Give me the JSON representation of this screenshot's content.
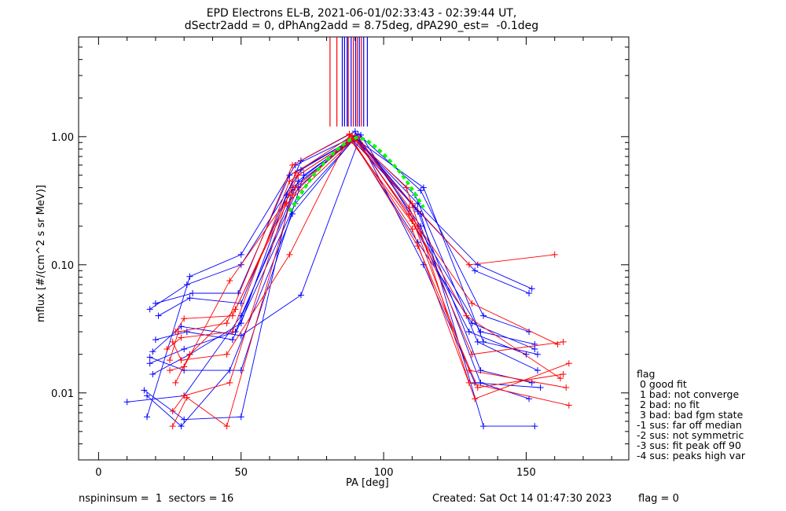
{
  "title_line1": "EPD Electrons EL-B, 2021-06-01/02:33:43 - 02:39:44 UT,",
  "title_line2": "dSectr2add = 0, dPhAng2add = 8.75deg, dPA290_est=  -0.1deg",
  "footer": {
    "left": "nspininsum =  1  sectors = 16",
    "created": "Created: Sat Oct 14 01:47:30 2023",
    "flag": "flag = 0"
  },
  "legend": {
    "title": "flag",
    "items": [
      " 0 good fit",
      " 1 bad: not converge",
      " 2 bad: no fit",
      " 3 bad: bad fgm state",
      "-1 sus: far off median",
      "-2 sus: not symmetric",
      "-3 sus: fit peak off 90",
      "-4 sus: peaks high var"
    ]
  },
  "colors": {
    "blue": "#0000ff",
    "red": "#ff0000",
    "green": "#00ff00",
    "axis": "#000000"
  },
  "chart_data": {
    "type": "line",
    "xlabel": "PA [deg]",
    "ylabel": "mflux [#/(cm^2 s sr MeV)]",
    "xlim": [
      -7,
      186
    ],
    "ylim": [
      0.003,
      6.0
    ],
    "ylog": true,
    "xticks": [
      0,
      50,
      100,
      150
    ],
    "xticklabels": [
      "0",
      "50",
      "100",
      "150"
    ],
    "yticks": [
      0.01,
      0.1,
      1.0
    ],
    "yticklabels": [
      "0.01",
      "0.10",
      "1.00"
    ],
    "vertical_lines": [
      {
        "color": "red",
        "x": 81.2,
        "ymin": 1.2
      },
      {
        "color": "red",
        "x": 83.6,
        "ymin": 1.2
      },
      {
        "color": "blue",
        "x": 85.5,
        "ymin": 1.2
      },
      {
        "color": "blue",
        "x": 86.3,
        "ymin": 1.2
      },
      {
        "color": "blue",
        "x": 87.2,
        "ymin": 1.2
      },
      {
        "color": "red",
        "x": 87.6,
        "ymin": 1.2
      },
      {
        "color": "blue",
        "x": 88.6,
        "ymin": 1.2
      },
      {
        "color": "red",
        "x": 89.4,
        "ymin": 1.2
      },
      {
        "color": "blue",
        "x": 90.2,
        "ymin": 1.2
      },
      {
        "color": "red",
        "x": 90.8,
        "ymin": 1.2
      },
      {
        "color": "blue",
        "x": 91.5,
        "ymin": 1.2
      },
      {
        "color": "red",
        "x": 92.2,
        "ymin": 1.2
      },
      {
        "color": "blue",
        "x": 93.0,
        "ymin": 1.2
      },
      {
        "color": "blue",
        "x": 94.3,
        "ymin": 1.2
      }
    ],
    "series": [
      {
        "color": "blue",
        "x": [
          10,
          30,
          50,
          70,
          90,
          110,
          130,
          150
        ],
        "y": [
          0.0085,
          0.0095,
          0.04,
          0.4,
          1.0,
          0.22,
          0.03,
          0.02
        ]
      },
      {
        "color": "blue",
        "x": [
          17,
          32,
          50,
          69,
          90,
          113,
          135,
          153
        ],
        "y": [
          0.0065,
          0.081,
          0.12,
          0.6,
          1.01,
          0.25,
          0.0055,
          0.0055
        ]
      },
      {
        "color": "blue",
        "x": [
          18,
          31,
          50,
          71,
          90,
          112,
          133,
          152
        ],
        "y": [
          0.045,
          0.07,
          0.1,
          0.55,
          0.98,
          0.3,
          0.1,
          0.065
        ]
      },
      {
        "color": "blue",
        "x": [
          20,
          33,
          49,
          67,
          89,
          111,
          132,
          151
        ],
        "y": [
          0.05,
          0.06,
          0.06,
          0.5,
          0.95,
          0.28,
          0.09,
          0.06
        ]
      },
      {
        "color": "blue",
        "x": [
          19,
          29,
          50,
          71,
          92,
          112,
          134,
          153
        ],
        "y": [
          0.021,
          0.033,
          0.028,
          0.058,
          1.03,
          0.2,
          0.03,
          0.024
        ]
      },
      {
        "color": "blue",
        "x": [
          16,
          30,
          50,
          68,
          90,
          111,
          133,
          154
        ],
        "y": [
          0.0105,
          0.0062,
          0.0065,
          0.4,
          0.96,
          0.35,
          0.025,
          0.015
        ]
      },
      {
        "color": "blue",
        "x": [
          18,
          30,
          48,
          70,
          90,
          112,
          134,
          152
        ],
        "y": [
          0.017,
          0.022,
          0.03,
          0.45,
          0.99,
          0.26,
          0.015,
          0.012
        ]
      },
      {
        "color": "blue",
        "x": [
          19,
          32,
          50,
          66,
          91,
          113,
          135,
          151
        ],
        "y": [
          0.014,
          0.02,
          0.035,
          0.35,
          1.05,
          0.38,
          0.04,
          0.03
        ]
      },
      {
        "color": "blue",
        "x": [
          20,
          31,
          47,
          69,
          90,
          114,
          135,
          154
        ],
        "y": [
          0.026,
          0.03,
          0.026,
          0.3,
          0.97,
          0.4,
          0.025,
          0.02
        ]
      },
      {
        "color": "blue",
        "x": [
          17,
          29,
          46,
          68,
          89,
          112,
          131,
          153
        ],
        "y": [
          0.0095,
          0.0055,
          0.015,
          0.25,
          0.93,
          0.15,
          0.035,
          0.022
        ]
      },
      {
        "color": "blue",
        "x": [
          18,
          30,
          50,
          72,
          91,
          113,
          134,
          151
        ],
        "y": [
          0.019,
          0.015,
          0.015,
          0.5,
          1.0,
          0.2,
          0.012,
          0.009
        ]
      },
      {
        "color": "blue",
        "x": [
          21,
          32,
          50,
          71,
          90,
          114,
          132,
          155
        ],
        "y": [
          0.04,
          0.055,
          0.05,
          0.65,
          1.1,
          0.1,
          0.012,
          0.011
        ]
      },
      {
        "color": "red",
        "x": [
          25,
          28,
          45,
          68,
          88,
          110,
          130,
          160
        ],
        "y": [
          0.018,
          0.03,
          0.035,
          0.6,
          1.05,
          0.3,
          0.1,
          0.12
        ]
      },
      {
        "color": "red",
        "x": [
          26,
          30,
          46,
          69,
          89,
          109,
          131,
          161
        ],
        "y": [
          0.0072,
          0.0095,
          0.012,
          0.52,
          1.02,
          0.25,
          0.05,
          0.024
        ]
      },
      {
        "color": "red",
        "x": [
          24,
          29,
          47,
          67,
          90,
          110,
          129,
          162
        ],
        "y": [
          0.022,
          0.027,
          0.03,
          0.45,
          0.98,
          0.22,
          0.04,
          0.013
        ]
      },
      {
        "color": "red",
        "x": [
          26,
          31,
          45,
          68,
          88,
          111,
          130,
          164
        ],
        "y": [
          0.0055,
          0.0092,
          0.0055,
          0.35,
          0.96,
          0.2,
          0.015,
          0.011
        ]
      },
      {
        "color": "red",
        "x": [
          27,
          30,
          47,
          70,
          91,
          109,
          131,
          163
        ],
        "y": [
          0.03,
          0.038,
          0.04,
          0.5,
          1.0,
          0.28,
          0.02,
          0.025
        ]
      },
      {
        "color": "red",
        "x": [
          25,
          30,
          46,
          69,
          89,
          110,
          132,
          165
        ],
        "y": [
          0.015,
          0.016,
          0.075,
          0.4,
          0.94,
          0.19,
          0.009,
          0.017
        ]
      },
      {
        "color": "red",
        "x": [
          27,
          32,
          48,
          66,
          90,
          108,
          130,
          165
        ],
        "y": [
          0.012,
          0.02,
          0.045,
          0.3,
          0.97,
          0.4,
          0.012,
          0.008
        ]
      },
      {
        "color": "red",
        "x": [
          26,
          29,
          45,
          67,
          88,
          112,
          133,
          163
        ],
        "y": [
          0.025,
          0.018,
          0.02,
          0.12,
          1.03,
          0.14,
          0.011,
          0.014
        ]
      }
    ],
    "fit": {
      "color": "green",
      "x": [
        67,
        70,
        73,
        76,
        79,
        82,
        85,
        88,
        91,
        94,
        97,
        100,
        103,
        106,
        109,
        112,
        114
      ],
      "y": [
        0.26,
        0.33,
        0.42,
        0.52,
        0.62,
        0.73,
        0.84,
        0.94,
        0.99,
        0.94,
        0.84,
        0.73,
        0.62,
        0.52,
        0.42,
        0.33,
        0.28
      ]
    },
    "median_fit": {
      "color": "black",
      "x": [
        100,
        103,
        106,
        109,
        112,
        115
      ],
      "y": [
        0.7,
        0.58,
        0.46,
        0.36,
        0.27,
        0.2
      ]
    }
  }
}
